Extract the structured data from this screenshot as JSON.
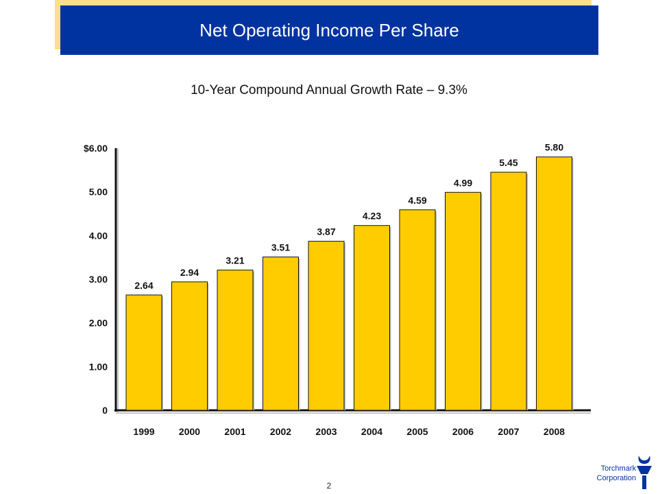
{
  "header": {
    "title": "Net Operating Income Per Share"
  },
  "footer": {
    "page_number": "2",
    "brand_line1": "Torchmark",
    "brand_line2": "Corporation",
    "logo_icon": "torch-icon"
  },
  "colors": {
    "bar": "#ffcc00",
    "header": "#0033a0",
    "header_shadow": "#fbe08a"
  },
  "chart_data": {
    "type": "bar",
    "title": "10-Year Compound Annual Growth Rate – 9.3%",
    "xlabel": "",
    "ylabel": "",
    "categories": [
      "1999",
      "2000",
      "2001",
      "2002",
      "2003",
      "2004",
      "2005",
      "2006",
      "2007",
      "2008"
    ],
    "values": [
      2.64,
      2.94,
      3.21,
      3.51,
      3.87,
      4.23,
      4.59,
      4.99,
      5.45,
      5.8
    ],
    "value_labels": [
      "2.64",
      "2.94",
      "3.21",
      "3.51",
      "3.87",
      "4.23",
      "4.59",
      "4.99",
      "5.45",
      "5.80"
    ],
    "ylim": [
      0,
      6
    ],
    "yticks": [
      0,
      1,
      2,
      3,
      4,
      5,
      6
    ],
    "ytick_labels": [
      "0",
      "1.00",
      "2.00",
      "3.00",
      "4.00",
      "5.00",
      "$6.00"
    ],
    "grid": false,
    "legend": "none"
  }
}
